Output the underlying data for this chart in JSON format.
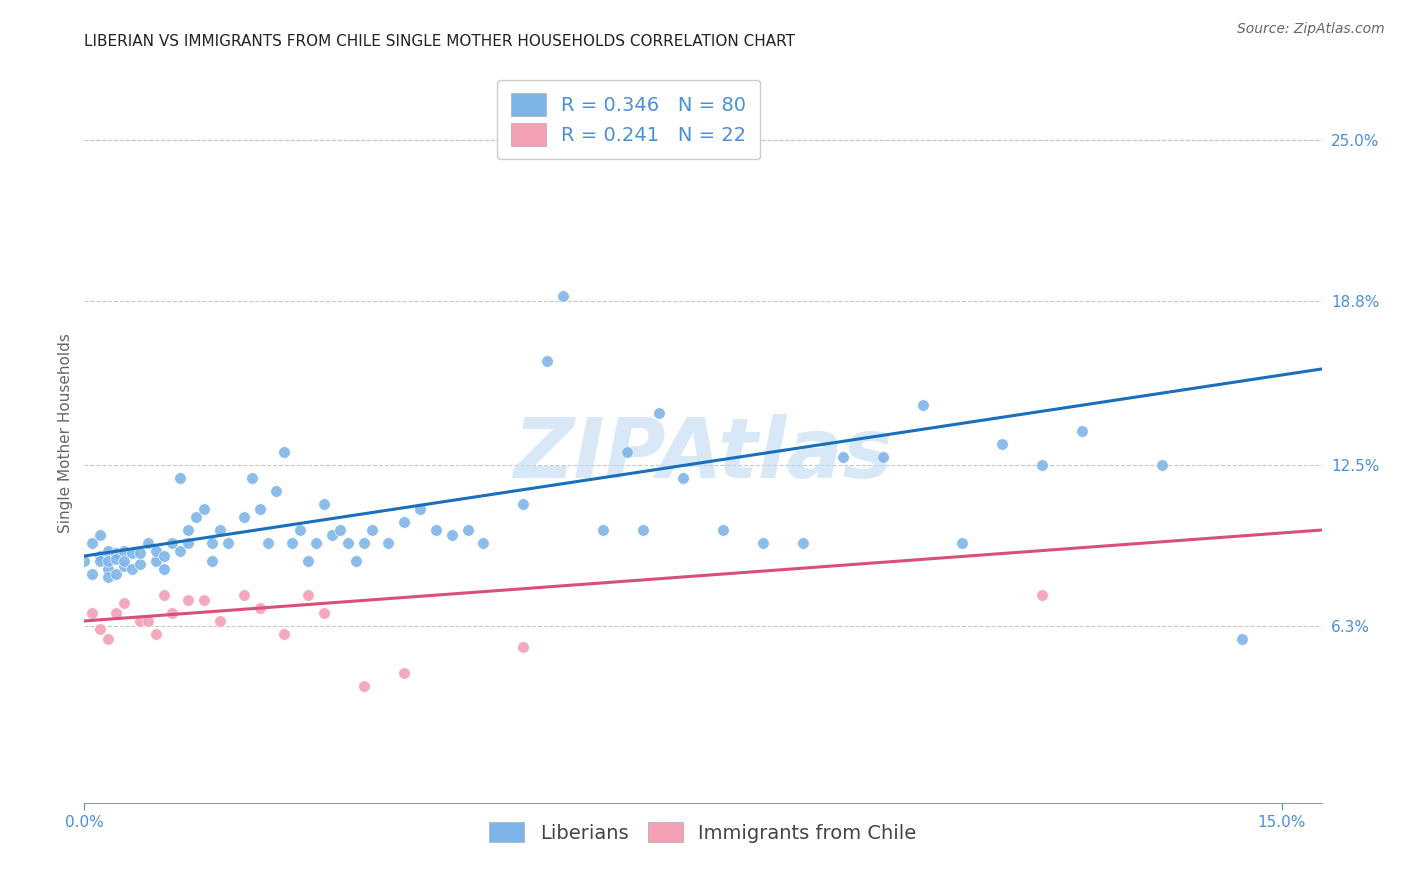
{
  "title": "LIBERIAN VS IMMIGRANTS FROM CHILE SINGLE MOTHER HOUSEHOLDS CORRELATION CHART",
  "source": "Source: ZipAtlas.com",
  "ylabel": "Single Mother Households",
  "xlim": [
    0.0,
    0.155
  ],
  "ylim": [
    -0.005,
    0.28
  ],
  "xtick_vals": [
    0.0,
    0.15
  ],
  "xtick_labels": [
    "0.0%",
    "15.0%"
  ],
  "ytick_vals": [
    0.063,
    0.125,
    0.188,
    0.25
  ],
  "ytick_labels": [
    "6.3%",
    "12.5%",
    "18.8%",
    "25.0%"
  ],
  "grid_color": "#c8c8c8",
  "background_color": "#ffffff",
  "blue_color": "#7eb5e8",
  "blue_trend_color": "#1a6fbd",
  "pink_color": "#f4a0b5",
  "pink_trend_color": "#d94f7a",
  "blue_R": "0.346",
  "blue_N": "80",
  "pink_R": "0.241",
  "pink_N": "22",
  "blue_trend_x0": 0.0,
  "blue_trend_y0": 0.09,
  "blue_trend_x1": 0.155,
  "blue_trend_y1": 0.162,
  "pink_trend_x0": 0.0,
  "pink_trend_y0": 0.065,
  "pink_trend_x1": 0.155,
  "pink_trend_y1": 0.1,
  "blue_x": [
    0.0,
    0.001,
    0.001,
    0.002,
    0.002,
    0.002,
    0.003,
    0.003,
    0.003,
    0.003,
    0.004,
    0.004,
    0.004,
    0.005,
    0.005,
    0.005,
    0.006,
    0.006,
    0.007,
    0.007,
    0.008,
    0.009,
    0.009,
    0.01,
    0.01,
    0.011,
    0.012,
    0.012,
    0.013,
    0.013,
    0.014,
    0.015,
    0.016,
    0.016,
    0.017,
    0.018,
    0.02,
    0.021,
    0.022,
    0.023,
    0.024,
    0.025,
    0.026,
    0.027,
    0.028,
    0.029,
    0.03,
    0.031,
    0.032,
    0.033,
    0.034,
    0.035,
    0.036,
    0.038,
    0.04,
    0.042,
    0.044,
    0.046,
    0.048,
    0.05,
    0.055,
    0.058,
    0.06,
    0.065,
    0.068,
    0.07,
    0.072,
    0.075,
    0.08,
    0.085,
    0.09,
    0.095,
    0.1,
    0.105,
    0.11,
    0.115,
    0.12,
    0.125,
    0.135,
    0.145
  ],
  "blue_y": [
    0.088,
    0.083,
    0.095,
    0.09,
    0.098,
    0.088,
    0.085,
    0.092,
    0.088,
    0.082,
    0.091,
    0.089,
    0.083,
    0.086,
    0.092,
    0.088,
    0.091,
    0.085,
    0.087,
    0.091,
    0.095,
    0.088,
    0.092,
    0.09,
    0.085,
    0.095,
    0.12,
    0.092,
    0.1,
    0.095,
    0.105,
    0.108,
    0.095,
    0.088,
    0.1,
    0.095,
    0.105,
    0.12,
    0.108,
    0.095,
    0.115,
    0.13,
    0.095,
    0.1,
    0.088,
    0.095,
    0.11,
    0.098,
    0.1,
    0.095,
    0.088,
    0.095,
    0.1,
    0.095,
    0.103,
    0.108,
    0.1,
    0.098,
    0.1,
    0.095,
    0.11,
    0.165,
    0.19,
    0.1,
    0.13,
    0.1,
    0.145,
    0.12,
    0.1,
    0.095,
    0.095,
    0.128,
    0.128,
    0.148,
    0.095,
    0.133,
    0.125,
    0.138,
    0.125,
    0.058
  ],
  "pink_x": [
    0.001,
    0.002,
    0.003,
    0.004,
    0.005,
    0.007,
    0.008,
    0.009,
    0.01,
    0.011,
    0.013,
    0.015,
    0.017,
    0.02,
    0.022,
    0.025,
    0.028,
    0.03,
    0.035,
    0.04,
    0.055,
    0.12
  ],
  "pink_y": [
    0.068,
    0.062,
    0.058,
    0.068,
    0.072,
    0.065,
    0.065,
    0.06,
    0.075,
    0.068,
    0.073,
    0.073,
    0.065,
    0.075,
    0.07,
    0.06,
    0.075,
    0.068,
    0.04,
    0.045,
    0.055,
    0.075
  ],
  "watermark": "ZIPAtlas",
  "watermark_color": "#c8dff5",
  "title_fontsize": 11,
  "ylabel_fontsize": 11,
  "tick_fontsize": 11,
  "legend_fontsize": 14,
  "source_fontsize": 10
}
